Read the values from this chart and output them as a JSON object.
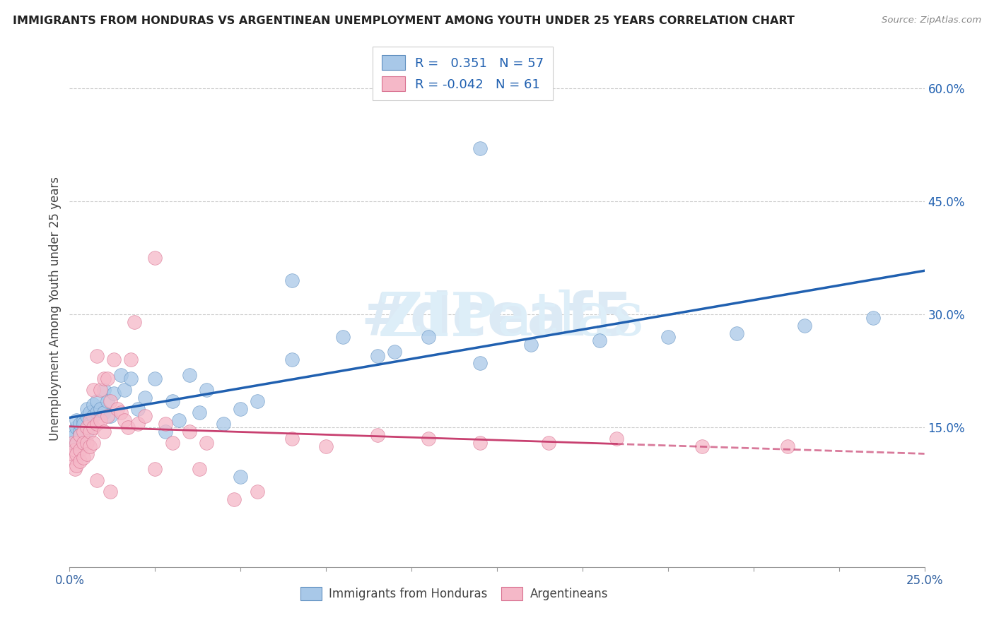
{
  "title": "IMMIGRANTS FROM HONDURAS VS ARGENTINEAN UNEMPLOYMENT AMONG YOUTH UNDER 25 YEARS CORRELATION CHART",
  "source": "Source: ZipAtlas.com",
  "ylabel": "Unemployment Among Youth under 25 years",
  "right_yticks": [
    "60.0%",
    "45.0%",
    "30.0%",
    "15.0%"
  ],
  "right_ytick_vals": [
    0.6,
    0.45,
    0.3,
    0.15
  ],
  "legend_entry1": "R =   0.351   N = 57",
  "legend_entry2": "R = -0.042   N = 61",
  "legend_label1": "Immigrants from Honduras",
  "legend_label2": "Argentineans",
  "color_blue": "#a8c8e8",
  "color_pink": "#f5b8c8",
  "color_blue_edge": "#6090c0",
  "color_pink_edge": "#d87090",
  "trendline_blue": "#2060b0",
  "trendline_pink": "#c84070",
  "watermark_color": "#dceaf5",
  "xlim": [
    0.0,
    0.25
  ],
  "ylim": [
    -0.035,
    0.65
  ],
  "x_ticks": [
    0.0,
    0.025,
    0.05,
    0.075,
    0.1,
    0.125,
    0.15,
    0.175,
    0.2,
    0.225,
    0.25
  ],
  "blue_scatter_x": [
    0.0005,
    0.001,
    0.001,
    0.0015,
    0.002,
    0.002,
    0.002,
    0.003,
    0.003,
    0.003,
    0.004,
    0.004,
    0.005,
    0.005,
    0.005,
    0.006,
    0.006,
    0.007,
    0.007,
    0.008,
    0.008,
    0.009,
    0.01,
    0.01,
    0.011,
    0.012,
    0.013,
    0.015,
    0.016,
    0.018,
    0.02,
    0.022,
    0.025,
    0.028,
    0.03,
    0.032,
    0.035,
    0.038,
    0.04,
    0.045,
    0.05,
    0.055,
    0.065,
    0.08,
    0.095,
    0.105,
    0.12,
    0.135,
    0.155,
    0.175,
    0.195,
    0.215,
    0.235,
    0.12,
    0.065,
    0.09,
    0.05
  ],
  "blue_scatter_y": [
    0.13,
    0.125,
    0.145,
    0.14,
    0.13,
    0.15,
    0.16,
    0.145,
    0.155,
    0.14,
    0.16,
    0.155,
    0.145,
    0.165,
    0.175,
    0.17,
    0.155,
    0.165,
    0.18,
    0.17,
    0.185,
    0.175,
    0.17,
    0.2,
    0.185,
    0.165,
    0.195,
    0.22,
    0.2,
    0.215,
    0.175,
    0.19,
    0.215,
    0.145,
    0.185,
    0.16,
    0.22,
    0.17,
    0.2,
    0.155,
    0.175,
    0.185,
    0.24,
    0.27,
    0.25,
    0.27,
    0.235,
    0.26,
    0.265,
    0.27,
    0.275,
    0.285,
    0.295,
    0.52,
    0.345,
    0.245,
    0.085
  ],
  "pink_scatter_x": [
    0.0005,
    0.001,
    0.001,
    0.0015,
    0.0015,
    0.002,
    0.002,
    0.002,
    0.003,
    0.003,
    0.003,
    0.004,
    0.004,
    0.004,
    0.005,
    0.005,
    0.005,
    0.006,
    0.006,
    0.006,
    0.007,
    0.007,
    0.007,
    0.008,
    0.008,
    0.009,
    0.009,
    0.01,
    0.01,
    0.011,
    0.011,
    0.012,
    0.013,
    0.014,
    0.015,
    0.016,
    0.017,
    0.018,
    0.019,
    0.02,
    0.022,
    0.025,
    0.028,
    0.03,
    0.035,
    0.038,
    0.04,
    0.048,
    0.055,
    0.065,
    0.075,
    0.09,
    0.105,
    0.12,
    0.14,
    0.16,
    0.185,
    0.21,
    0.025,
    0.012,
    0.008
  ],
  "pink_scatter_y": [
    0.11,
    0.115,
    0.13,
    0.12,
    0.095,
    0.13,
    0.115,
    0.1,
    0.14,
    0.12,
    0.105,
    0.145,
    0.13,
    0.11,
    0.15,
    0.13,
    0.115,
    0.145,
    0.16,
    0.125,
    0.15,
    0.2,
    0.13,
    0.155,
    0.245,
    0.16,
    0.2,
    0.145,
    0.215,
    0.215,
    0.165,
    0.185,
    0.24,
    0.175,
    0.17,
    0.16,
    0.15,
    0.24,
    0.29,
    0.155,
    0.165,
    0.375,
    0.155,
    0.13,
    0.145,
    0.095,
    0.13,
    0.055,
    0.065,
    0.135,
    0.125,
    0.14,
    0.135,
    0.13,
    0.13,
    0.135,
    0.125,
    0.125,
    0.095,
    0.065,
    0.08
  ]
}
